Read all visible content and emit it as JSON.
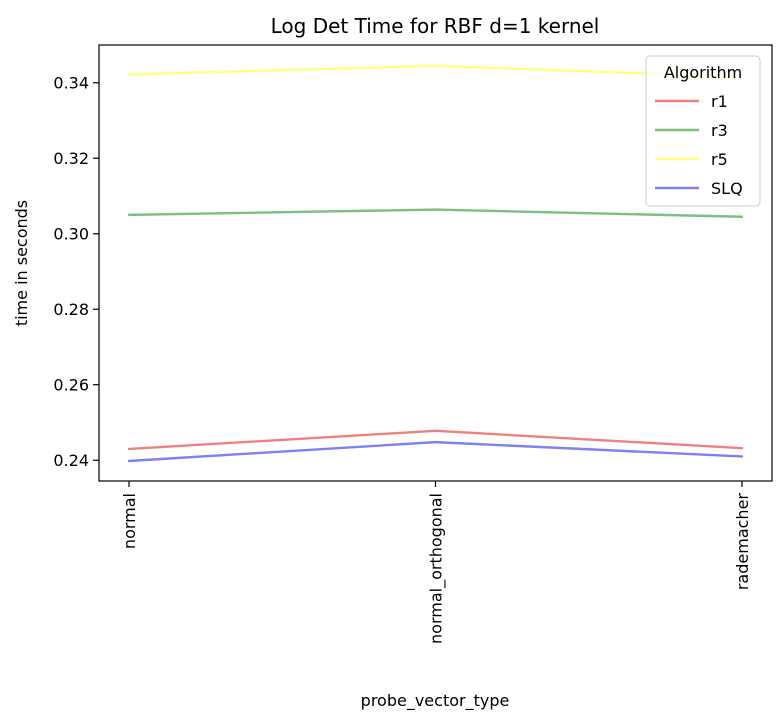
{
  "chart_data": {
    "type": "line",
    "title": "Log Det Time for RBF d=1 kernel",
    "xlabel": "probe_vector_type",
    "ylabel": "time in seconds",
    "categories": [
      "normal",
      "normal_orthogonal",
      "rademacher"
    ],
    "ylim": [
      0.2345,
      0.35
    ],
    "yticks": [
      0.24,
      0.26,
      0.28,
      0.3,
      0.32,
      0.34
    ],
    "ytick_labels": [
      "0.24",
      "0.26",
      "0.28",
      "0.30",
      "0.32",
      "0.34"
    ],
    "legend": {
      "title": "Algorithm",
      "position": "top-right"
    },
    "series": [
      {
        "name": "r1",
        "color": "#f08080",
        "values": [
          0.243,
          0.2478,
          0.2432
        ]
      },
      {
        "name": "r3",
        "color": "#7fbf7f",
        "values": [
          0.305,
          0.3064,
          0.3045
        ]
      },
      {
        "name": "r5",
        "color": "#ffff80",
        "values": [
          0.3422,
          0.3445,
          0.3415
        ]
      },
      {
        "name": "SLQ",
        "color": "#8080f0",
        "values": [
          0.2398,
          0.2448,
          0.241
        ]
      }
    ]
  }
}
